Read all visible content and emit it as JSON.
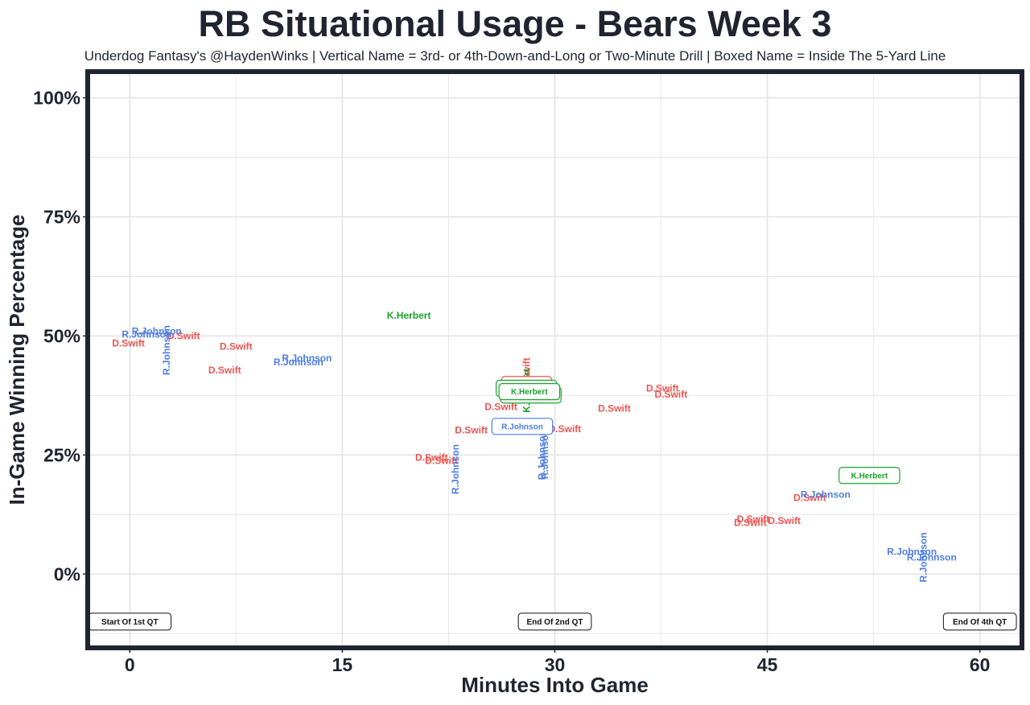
{
  "title": "RB Situational Usage - Bears Week 3",
  "subtitle": "Underdog Fantasy's @HaydenWinks | Vertical Name = 3rd- or 4th-Down-and-Long or Two-Minute Drill | Boxed Name = Inside The 5-Yard Line",
  "colors": {
    "D.Swift": "#ef5350",
    "R.Johnson": "#4f7fe3",
    "K.Herbert": "#1aa32a",
    "frame": "#1f2430",
    "grid": "#e3e3e3"
  },
  "chart_data": {
    "type": "scatter",
    "title": "RB Situational Usage - Bears Week 3",
    "xlabel": "Minutes Into Game",
    "ylabel": "In-Game Winning Percentage",
    "xlim": [
      -2.8,
      62.8
    ],
    "ylim": [
      -15,
      105
    ],
    "x_ticks": [
      0,
      15,
      30,
      45,
      60
    ],
    "x_tick_labels": [
      "0",
      "15",
      "30",
      "45",
      "60"
    ],
    "y_ticks": [
      0,
      25,
      50,
      75,
      100
    ],
    "y_tick_labels": [
      "0%",
      "25%",
      "50%",
      "75%",
      "100%"
    ],
    "grid": true,
    "series": [
      {
        "name": "D.Swift",
        "points": [
          {
            "x": -0.1,
            "y": 48.5,
            "style": "normal"
          },
          {
            "x": 3.8,
            "y": 50.0,
            "style": "normal"
          },
          {
            "x": 7.5,
            "y": 47.8,
            "style": "normal"
          },
          {
            "x": 6.7,
            "y": 42.8,
            "style": "normal"
          },
          {
            "x": 21.3,
            "y": 24.5,
            "style": "normal"
          },
          {
            "x": 22.0,
            "y": 23.8,
            "style": "normal"
          },
          {
            "x": 24.1,
            "y": 30.2,
            "style": "normal"
          },
          {
            "x": 26.2,
            "y": 35.1,
            "style": "normal"
          },
          {
            "x": 28.0,
            "y": 39.8,
            "style": "boxed"
          },
          {
            "x": 28.0,
            "y": 42.0,
            "style": "vertical"
          },
          {
            "x": 30.7,
            "y": 30.5,
            "style": "normal"
          },
          {
            "x": 34.2,
            "y": 34.8,
            "style": "normal"
          },
          {
            "x": 37.6,
            "y": 39.0,
            "style": "normal"
          },
          {
            "x": 38.2,
            "y": 37.7,
            "style": "normal"
          },
          {
            "x": 44.0,
            "y": 11.5,
            "style": "normal"
          },
          {
            "x": 43.8,
            "y": 10.8,
            "style": "normal"
          },
          {
            "x": 46.2,
            "y": 11.2,
            "style": "normal"
          },
          {
            "x": 48.0,
            "y": 16.0,
            "style": "normal"
          }
        ]
      },
      {
        "name": "R.Johnson",
        "points": [
          {
            "x": 1.9,
            "y": 51.0,
            "style": "normal"
          },
          {
            "x": 1.2,
            "y": 50.3,
            "style": "normal"
          },
          {
            "x": 2.6,
            "y": 47.0,
            "style": "vertical"
          },
          {
            "x": 12.5,
            "y": 45.3,
            "style": "normal"
          },
          {
            "x": 11.9,
            "y": 44.5,
            "style": "normal"
          },
          {
            "x": 23.0,
            "y": 22.0,
            "style": "vertical"
          },
          {
            "x": 27.7,
            "y": 31.0,
            "style": "boxed"
          },
          {
            "x": 29.1,
            "y": 25.0,
            "style": "vertical"
          },
          {
            "x": 29.3,
            "y": 25.2,
            "style": "vertical"
          },
          {
            "x": 49.1,
            "y": 16.7,
            "style": "normal"
          },
          {
            "x": 55.2,
            "y": 4.7,
            "style": "normal"
          },
          {
            "x": 56.6,
            "y": 3.5,
            "style": "normal"
          },
          {
            "x": 56.0,
            "y": 3.5,
            "style": "vertical"
          }
        ]
      },
      {
        "name": "K.Herbert",
        "points": [
          {
            "x": 19.7,
            "y": 54.3,
            "style": "normal"
          },
          {
            "x": 52.2,
            "y": 20.7,
            "style": "boxed"
          },
          {
            "x": 28.0,
            "y": 39.0,
            "style": "boxed"
          },
          {
            "x": 28.3,
            "y": 37.6,
            "style": "boxed"
          },
          {
            "x": 28.2,
            "y": 38.3,
            "style": "boxed"
          },
          {
            "x": 28.0,
            "y": 38.5,
            "style": "vertical"
          }
        ]
      }
    ],
    "annotations": [
      {
        "text": "Start Of 1st QT",
        "x": 0,
        "y": -10
      },
      {
        "text": "End Of 2nd QT",
        "x": 30,
        "y": -10
      },
      {
        "text": "End Of 4th QT",
        "x": 60,
        "y": -10
      }
    ]
  }
}
